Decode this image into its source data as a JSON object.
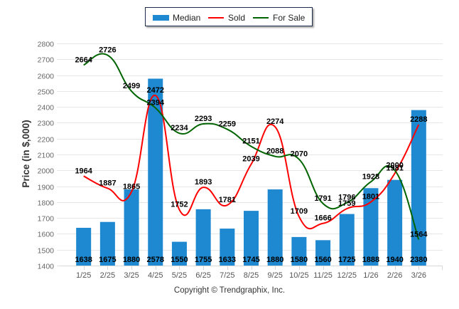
{
  "chart_data": {
    "type": "bar",
    "title": "",
    "xlabel": "",
    "ylabel": "Price (in $,000)",
    "ylim": [
      1400,
      2800
    ],
    "yticks": [
      1400,
      1500,
      1600,
      1700,
      1800,
      1900,
      2000,
      2100,
      2200,
      2300,
      2400,
      2500,
      2600,
      2700,
      2800
    ],
    "grid": true,
    "legend": "top-center",
    "categories": [
      "1/25",
      "2/25",
      "3/25",
      "4/25",
      "5/25",
      "6/25",
      "7/25",
      "8/25",
      "9/25",
      "10/25",
      "11/25",
      "12/25",
      "1/26",
      "2/26",
      "3/26"
    ],
    "series": [
      {
        "name": "Median",
        "type": "bar",
        "color": "#1e88d0",
        "values": [
          1638,
          1675,
          1880,
          2578,
          1550,
          1755,
          1633,
          1745,
          1880,
          1580,
          1560,
          1725,
          1888,
          1940,
          2380
        ]
      },
      {
        "name": "Sold",
        "type": "line",
        "smooth": true,
        "color": "#ff0000",
        "values": [
          1964,
          1887,
          1865,
          2472,
          1752,
          1893,
          1781,
          2039,
          2274,
          1709,
          1666,
          1759,
          1801,
          1981,
          2288
        ]
      },
      {
        "name": "For Sale",
        "type": "line",
        "smooth": true,
        "color": "#006400",
        "values": [
          2664,
          2726,
          2499,
          2394,
          2234,
          2293,
          2259,
          2151,
          2088,
          2070,
          1791,
          1796,
          1928,
          2000,
          1564
        ]
      }
    ],
    "data_labels": true,
    "credits": "Copyright © Trendgraphix, Inc."
  }
}
